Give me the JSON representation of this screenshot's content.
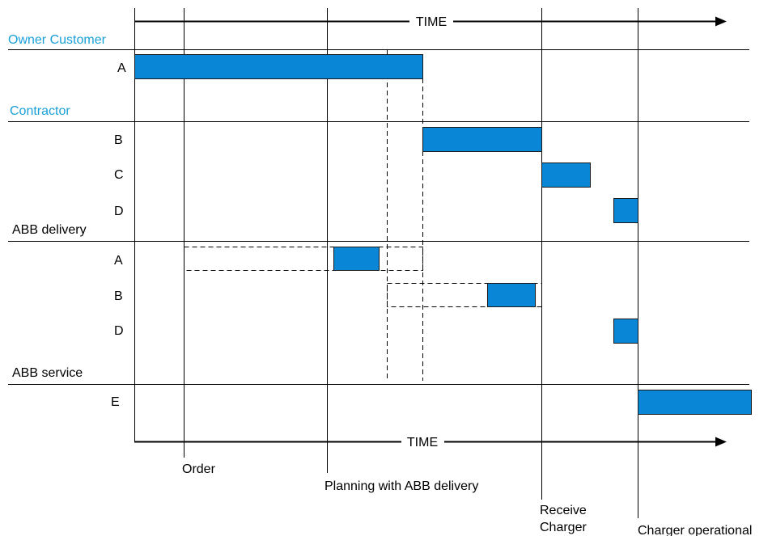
{
  "axis": {
    "top_label": "TIME",
    "bottom_label": "TIME"
  },
  "sections": {
    "owner_customer": "Owner Customer",
    "contractor": "Contractor",
    "abb_delivery": "ABB delivery",
    "abb_service": "ABB service"
  },
  "rows": {
    "owner_a": "A",
    "contractor_b": "B",
    "contractor_c": "C",
    "contractor_d": "D",
    "delivery_a": "A",
    "delivery_b": "B",
    "delivery_d": "D",
    "service_e": "E"
  },
  "milestones": {
    "order": "Order",
    "planning": "Planning with ABB delivery",
    "receive_1": "Receive",
    "receive_2": "Charger",
    "operational": "Charger operational"
  },
  "colors": {
    "bar": "#0a86d6",
    "section_title": "#1aa0d8"
  }
}
